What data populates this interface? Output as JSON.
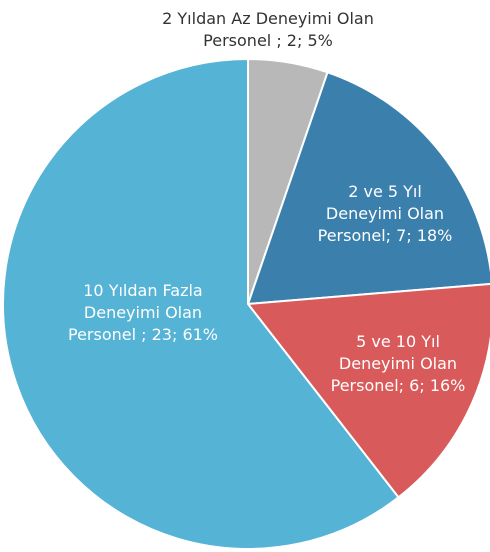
{
  "chart_data": {
    "type": "pie",
    "categories": [
      "2 Yıldan Az Deneyimi Olan Personel",
      "2 ve 5 Yıl Deneyimi Olan Personel",
      "5 ve 10 Yıl Deneyimi Olan Personel",
      "10 Yıldan Fazla Deneyimi Olan Personel"
    ],
    "values": [
      2,
      7,
      6,
      23
    ],
    "value_labels": [
      "2 Yıldan Az Deneyimi Olan Personel ; 2; 5%",
      "2 ve 5 Yıl Deneyimi Olan Personel; 7; 18%",
      "5 ve 10 Yıl Deneyimi Olan Personel; 6; 16%",
      "10 Yıldan Fazla Deneyimi Olan Personel ; 23; 61%"
    ],
    "colors": [
      "#b8b8b8",
      "#3b7fad",
      "#d95a5a",
      "#55b3d6"
    ]
  }
}
